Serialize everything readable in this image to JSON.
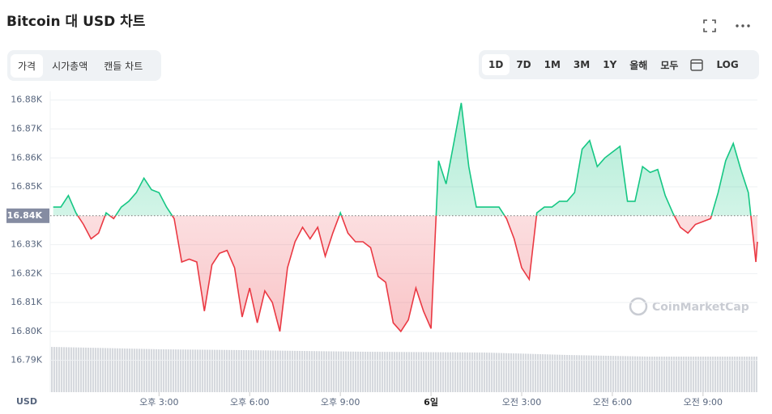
{
  "header": {
    "title": "Bitcoin 대 USD 차트"
  },
  "tabs": [
    "가격",
    "시가총액",
    "캔들 차트"
  ],
  "active_tab": 0,
  "ranges": [
    "1D",
    "7D",
    "1M",
    "3M",
    "1Y",
    "올해",
    "모두"
  ],
  "active_range": 0,
  "log": "LOG",
  "chart_data": {
    "type": "line",
    "y_unit": "USD",
    "watermark": "CoinMarketCap",
    "up_color": "#16c784",
    "down_color": "#ea3943",
    "grid": true,
    "baseline": {
      "value": 16840,
      "label": "16.84K"
    },
    "xlim": [
      11.4,
      34.8
    ],
    "ylim": [
      16779,
      16883
    ],
    "xticks": [
      {
        "value": 15,
        "label": "오후 3:00"
      },
      {
        "value": 18,
        "label": "오후 6:00"
      },
      {
        "value": 21,
        "label": "오후 9:00"
      },
      {
        "value": 24,
        "label": "6일"
      },
      {
        "value": 27,
        "label": "오전 3:00"
      },
      {
        "value": 30,
        "label": "오전 6:00"
      },
      {
        "value": 33,
        "label": "오전 9:00"
      }
    ],
    "yticks": [
      {
        "value": 16790,
        "label": "16.79K"
      },
      {
        "value": 16800,
        "label": "16.80K"
      },
      {
        "value": 16810,
        "label": "16.81K"
      },
      {
        "value": 16820,
        "label": "16.82K"
      },
      {
        "value": 16830,
        "label": "16.83K"
      },
      {
        "value": 16850,
        "label": "16.85K"
      },
      {
        "value": 16860,
        "label": "16.86K"
      },
      {
        "value": 16870,
        "label": "16.87K"
      },
      {
        "value": 16880,
        "label": "16.88K"
      }
    ],
    "x": [
      11.5,
      11.75,
      12,
      12.25,
      12.5,
      12.75,
      13,
      13.25,
      13.5,
      13.75,
      14,
      14.25,
      14.5,
      14.75,
      15,
      15.25,
      15.5,
      15.75,
      16,
      16.25,
      16.5,
      16.75,
      17,
      17.25,
      17.5,
      17.75,
      18,
      18.25,
      18.5,
      18.75,
      19,
      19.25,
      19.5,
      19.75,
      20,
      20.25,
      20.5,
      20.75,
      21,
      21.25,
      21.5,
      21.75,
      22,
      22.25,
      22.5,
      22.75,
      23,
      23.25,
      23.5,
      23.75,
      24,
      24.25,
      24.5,
      24.75,
      25,
      25.25,
      25.5,
      25.75,
      26,
      26.25,
      26.5,
      26.75,
      27,
      27.25,
      27.5,
      27.75,
      28,
      28.25,
      28.5,
      28.75,
      29,
      29.25,
      29.5,
      29.75,
      30,
      30.25,
      30.5,
      30.75,
      31,
      31.25,
      31.5,
      31.75,
      32,
      32.25,
      32.5,
      32.75,
      33,
      33.25,
      33.5,
      33.75,
      34,
      34.25,
      34.5,
      34.75,
      34.8
    ],
    "values": [
      16843,
      16843,
      16847,
      16841,
      16837,
      16832,
      16834,
      16841,
      16839,
      16843,
      16845,
      16848,
      16853,
      16849,
      16848,
      16843,
      16839,
      16824,
      16825,
      16824,
      16807,
      16823,
      16827,
      16828,
      16822,
      16805,
      16815,
      16803,
      16814,
      16810,
      16800,
      16822,
      16831,
      16836,
      16832,
      16836,
      16826,
      16834,
      16841,
      16834,
      16831,
      16831,
      16829,
      16819,
      16817,
      16803,
      16800,
      16804,
      16815,
      16807,
      16801,
      16859,
      16851,
      16865,
      16879,
      16857,
      16843,
      16843,
      16843,
      16843,
      16839,
      16832,
      16822,
      16818,
      16841,
      16843,
      16843,
      16845,
      16845,
      16848,
      16863,
      16866,
      16857,
      16860,
      16862,
      16864,
      16845,
      16845,
      16857,
      16855,
      16856,
      16847,
      16841,
      16836,
      16834,
      16837,
      16838,
      16839,
      16848,
      16859,
      16865,
      16856,
      16848,
      16824,
      16831
    ]
  }
}
